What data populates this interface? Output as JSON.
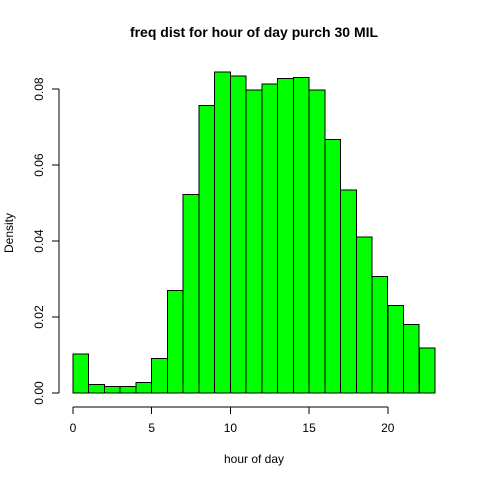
{
  "chart_data": {
    "type": "bar",
    "title": "freq dist for hour of day purch 30 MIL",
    "xlabel": "hour of day",
    "ylabel": "Density",
    "bar_color": "#00ff00",
    "bar_edge_color": "#000000",
    "bins": [
      {
        "x0": 0,
        "x1": 1,
        "density": 0.0103
      },
      {
        "x0": 1,
        "x1": 2,
        "density": 0.0022
      },
      {
        "x0": 2,
        "x1": 3,
        "density": 0.0017
      },
      {
        "x0": 3,
        "x1": 4,
        "density": 0.0017
      },
      {
        "x0": 4,
        "x1": 5,
        "density": 0.0028
      },
      {
        "x0": 5,
        "x1": 6,
        "density": 0.0091
      },
      {
        "x0": 6,
        "x1": 7,
        "density": 0.027
      },
      {
        "x0": 7,
        "x1": 8,
        "density": 0.0523
      },
      {
        "x0": 8,
        "x1": 9,
        "density": 0.0757
      },
      {
        "x0": 9,
        "x1": 10,
        "density": 0.0845
      },
      {
        "x0": 10,
        "x1": 11,
        "density": 0.0834
      },
      {
        "x0": 11,
        "x1": 12,
        "density": 0.0797
      },
      {
        "x0": 12,
        "x1": 13,
        "density": 0.0813
      },
      {
        "x0": 13,
        "x1": 14,
        "density": 0.0828
      },
      {
        "x0": 14,
        "x1": 15,
        "density": 0.083
      },
      {
        "x0": 15,
        "x1": 16,
        "density": 0.0797
      },
      {
        "x0": 16,
        "x1": 17,
        "density": 0.0667
      },
      {
        "x0": 17,
        "x1": 18,
        "density": 0.0534
      },
      {
        "x0": 18,
        "x1": 19,
        "density": 0.041
      },
      {
        "x0": 19,
        "x1": 20,
        "density": 0.0307
      },
      {
        "x0": 20,
        "x1": 21,
        "density": 0.023
      },
      {
        "x0": 21,
        "x1": 22,
        "density": 0.018
      },
      {
        "x0": 22,
        "x1": 23,
        "density": 0.0118
      }
    ],
    "xlim": [
      0,
      23
    ],
    "ylim": [
      0,
      0.0845
    ],
    "x_ticks": [
      0,
      5,
      10,
      15,
      20
    ],
    "x_tick_labels": [
      "0",
      "5",
      "10",
      "15",
      "20"
    ],
    "y_ticks": [
      0.0,
      0.02,
      0.04,
      0.06,
      0.08
    ],
    "y_tick_labels": [
      "0.00",
      "0.02",
      "0.04",
      "0.06",
      "0.08"
    ],
    "grid": false,
    "legend": "none"
  }
}
